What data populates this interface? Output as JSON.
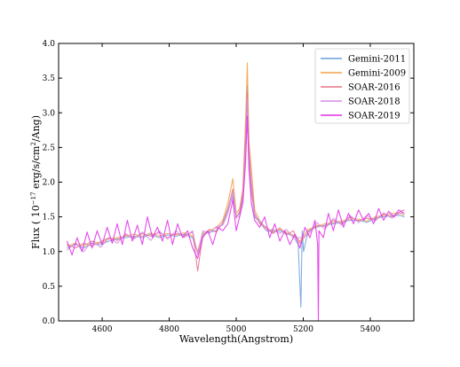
{
  "chart_data": {
    "type": "line",
    "xlabel": "Wavelength(Angstrom)",
    "ylabel_prefix": "Flux ( 10",
    "ylabel_exp": "−17",
    "ylabel_mid": " erg/s/cm",
    "ylabel_sq": "2",
    "ylabel_suffix": "/Ang)",
    "xlim": [
      4470,
      5530
    ],
    "ylim": [
      0.0,
      4.0
    ],
    "xticks": [
      {
        "value": 4600,
        "label": "4600"
      },
      {
        "value": 4800,
        "label": "4800"
      },
      {
        "value": 5000,
        "label": "5000"
      },
      {
        "value": 5200,
        "label": "5200"
      },
      {
        "value": 5400,
        "label": "5400"
      }
    ],
    "yticks": [
      {
        "value": 0.0,
        "label": "0.0"
      },
      {
        "value": 0.5,
        "label": "0.5"
      },
      {
        "value": 1.0,
        "label": "1.0"
      },
      {
        "value": 1.5,
        "label": "1.5"
      },
      {
        "value": 2.0,
        "label": "2.0"
      },
      {
        "value": 2.5,
        "label": "2.5"
      },
      {
        "value": 3.0,
        "label": "3.0"
      },
      {
        "value": 3.5,
        "label": "3.5"
      },
      {
        "value": 4.0,
        "label": "4.0"
      }
    ],
    "grid": false,
    "legend": "top-right",
    "series": [
      {
        "name": "Gemini-2011",
        "color": "#6f9fd8",
        "x": [
          4495,
          4520,
          4545,
          4570,
          4595,
          4620,
          4645,
          4670,
          4695,
          4720,
          4745,
          4770,
          4795,
          4820,
          4845,
          4870,
          4885,
          4900,
          4920,
          4940,
          4960,
          4975,
          4990,
          5000,
          5010,
          5020,
          5028,
          5033,
          5038,
          5045,
          5055,
          5070,
          5090,
          5110,
          5130,
          5150,
          5170,
          5185,
          5193,
          5197,
          5201,
          5215,
          5240,
          5265,
          5290,
          5315,
          5340,
          5365,
          5390,
          5415,
          5440,
          5465,
          5490,
          5502
        ],
        "y": [
          1.05,
          1.1,
          1.05,
          1.12,
          1.1,
          1.15,
          1.18,
          1.2,
          1.22,
          1.2,
          1.25,
          1.2,
          1.24,
          1.22,
          1.25,
          1.2,
          0.98,
          1.25,
          1.28,
          1.3,
          1.4,
          1.6,
          1.8,
          1.5,
          1.55,
          1.8,
          2.6,
          3.4,
          2.4,
          1.9,
          1.5,
          1.42,
          1.3,
          1.28,
          1.3,
          1.26,
          1.22,
          1.1,
          0.2,
          1.3,
          1.0,
          1.3,
          1.35,
          1.38,
          1.4,
          1.42,
          1.45,
          1.45,
          1.42,
          1.48,
          1.5,
          1.52,
          1.52,
          1.5
        ]
      },
      {
        "name": "Gemini-2009",
        "color": "#f0a14a",
        "x": [
          4495,
          4520,
          4545,
          4570,
          4595,
          4620,
          4645,
          4670,
          4695,
          4720,
          4745,
          4770,
          4795,
          4820,
          4845,
          4870,
          4885,
          4900,
          4920,
          4940,
          4960,
          4975,
          4990,
          5000,
          5010,
          5020,
          5028,
          5033,
          5038,
          5045,
          5055,
          5070,
          5090,
          5110,
          5130,
          5150,
          5170,
          5190,
          5215,
          5240,
          5265,
          5290,
          5315,
          5340,
          5365,
          5390,
          5415,
          5440,
          5465,
          5490,
          5502
        ],
        "y": [
          1.08,
          1.12,
          1.08,
          1.15,
          1.12,
          1.18,
          1.2,
          1.22,
          1.25,
          1.22,
          1.27,
          1.22,
          1.26,
          1.24,
          1.27,
          1.22,
          1.0,
          1.27,
          1.3,
          1.34,
          1.45,
          1.7,
          2.05,
          1.55,
          1.62,
          1.9,
          2.9,
          3.72,
          2.6,
          2.2,
          1.6,
          1.45,
          1.33,
          1.3,
          1.32,
          1.28,
          1.24,
          1.15,
          1.32,
          1.36,
          1.4,
          1.42,
          1.44,
          1.47,
          1.47,
          1.44,
          1.5,
          1.52,
          1.55,
          1.55,
          1.52
        ]
      },
      {
        "name": "SOAR-2016",
        "color": "#e8728a",
        "x": [
          4495,
          4520,
          4545,
          4570,
          4595,
          4620,
          4645,
          4670,
          4695,
          4720,
          4745,
          4770,
          4795,
          4820,
          4845,
          4870,
          4885,
          4900,
          4920,
          4940,
          4960,
          4975,
          4990,
          5000,
          5010,
          5020,
          5028,
          5033,
          5038,
          5045,
          5055,
          5070,
          5090,
          5110,
          5130,
          5150,
          5170,
          5190,
          5215,
          5240,
          5265,
          5290,
          5315,
          5340,
          5365,
          5390,
          5415,
          5440,
          5465,
          5490,
          5502
        ],
        "y": [
          1.1,
          1.05,
          1.12,
          1.08,
          1.14,
          1.2,
          1.16,
          1.24,
          1.2,
          1.26,
          1.22,
          1.28,
          1.2,
          1.26,
          1.22,
          1.28,
          0.72,
          1.22,
          1.32,
          1.28,
          1.42,
          1.62,
          1.9,
          1.48,
          1.58,
          1.85,
          2.7,
          3.3,
          2.45,
          2.0,
          1.55,
          1.4,
          1.35,
          1.26,
          1.34,
          1.24,
          1.3,
          1.12,
          1.28,
          1.38,
          1.36,
          1.45,
          1.4,
          1.5,
          1.44,
          1.48,
          1.46,
          1.54,
          1.5,
          1.58,
          1.6
        ]
      },
      {
        "name": "SOAR-2018",
        "color": "#d58ee6",
        "x": [
          4495,
          4520,
          4545,
          4570,
          4595,
          4620,
          4645,
          4670,
          4695,
          4720,
          4745,
          4770,
          4795,
          4820,
          4845,
          4870,
          4885,
          4900,
          4920,
          4940,
          4960,
          4975,
          4990,
          5000,
          5010,
          5020,
          5028,
          5033,
          5038,
          5045,
          5055,
          5070,
          5090,
          5110,
          5130,
          5150,
          5170,
          5190,
          5215,
          5240,
          5265,
          5290,
          5315,
          5340,
          5365,
          5390,
          5415,
          5440,
          5465,
          5490,
          5502
        ],
        "y": [
          1.02,
          1.12,
          1.0,
          1.15,
          1.06,
          1.2,
          1.12,
          1.26,
          1.18,
          1.28,
          1.16,
          1.3,
          1.18,
          1.3,
          1.2,
          1.3,
          0.95,
          1.3,
          1.26,
          1.36,
          1.38,
          1.55,
          1.85,
          1.52,
          1.5,
          1.75,
          2.5,
          3.2,
          2.3,
          1.85,
          1.52,
          1.45,
          1.3,
          1.32,
          1.26,
          1.32,
          1.2,
          1.2,
          1.24,
          1.42,
          1.32,
          1.48,
          1.38,
          1.52,
          1.42,
          1.52,
          1.44,
          1.56,
          1.48,
          1.56,
          1.55
        ]
      },
      {
        "name": "SOAR-2019",
        "color": "#e22de8",
        "x": [
          4495,
          4510,
          4525,
          4540,
          4555,
          4570,
          4585,
          4600,
          4615,
          4630,
          4645,
          4660,
          4675,
          4690,
          4705,
          4720,
          4735,
          4750,
          4765,
          4780,
          4795,
          4810,
          4825,
          4840,
          4855,
          4870,
          4885,
          4900,
          4915,
          4930,
          4945,
          4960,
          4975,
          4990,
          5000,
          5010,
          5020,
          5028,
          5033,
          5038,
          5045,
          5055,
          5070,
          5085,
          5100,
          5115,
          5130,
          5145,
          5160,
          5175,
          5190,
          5205,
          5220,
          5235,
          5243,
          5245,
          5247,
          5260,
          5275,
          5290,
          5305,
          5320,
          5335,
          5350,
          5365,
          5380,
          5395,
          5410,
          5425,
          5440,
          5455,
          5470,
          5485,
          5502
        ],
        "y": [
          1.15,
          0.95,
          1.2,
          1.0,
          1.28,
          1.05,
          1.3,
          1.1,
          1.35,
          1.12,
          1.4,
          1.1,
          1.45,
          1.15,
          1.38,
          1.1,
          1.5,
          1.2,
          1.35,
          1.15,
          1.45,
          1.1,
          1.4,
          1.2,
          1.3,
          1.05,
          0.9,
          1.2,
          1.3,
          1.1,
          1.35,
          1.3,
          1.4,
          1.75,
          1.3,
          1.5,
          1.7,
          2.3,
          2.95,
          2.2,
          1.7,
          1.45,
          1.35,
          1.5,
          1.2,
          1.4,
          1.15,
          1.3,
          1.1,
          1.25,
          1.05,
          1.35,
          1.2,
          1.45,
          1.1,
          0.0,
          1.3,
          1.2,
          1.55,
          1.3,
          1.6,
          1.35,
          1.55,
          1.4,
          1.6,
          1.45,
          1.55,
          1.4,
          1.62,
          1.45,
          1.58,
          1.5,
          1.6,
          1.55
        ]
      }
    ]
  }
}
